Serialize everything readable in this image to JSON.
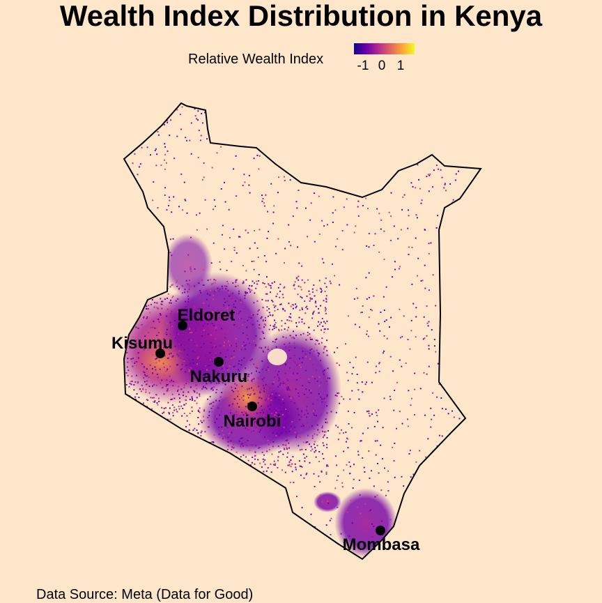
{
  "title": "Wealth Index Distribution in Kenya",
  "legend": {
    "label": "Relative Wealth Index",
    "ticks": [
      "-1",
      "0",
      "1"
    ],
    "colors": [
      "#0d0887",
      "#6a00a8",
      "#b12a90",
      "#e16462",
      "#fca636",
      "#f0f921"
    ]
  },
  "cities": [
    {
      "name": "Eldoret",
      "id": "eldoret"
    },
    {
      "name": "Kisumu",
      "id": "kisumu"
    },
    {
      "name": "Nakuru",
      "id": "nakuru"
    },
    {
      "name": "Nairobi",
      "id": "nairobi"
    },
    {
      "name": "Mombasa",
      "id": "mombasa"
    }
  ],
  "caption": "Data Source: Meta (Data for Good)",
  "colors": {
    "background": "#fde6c9",
    "border": "#000000"
  }
}
